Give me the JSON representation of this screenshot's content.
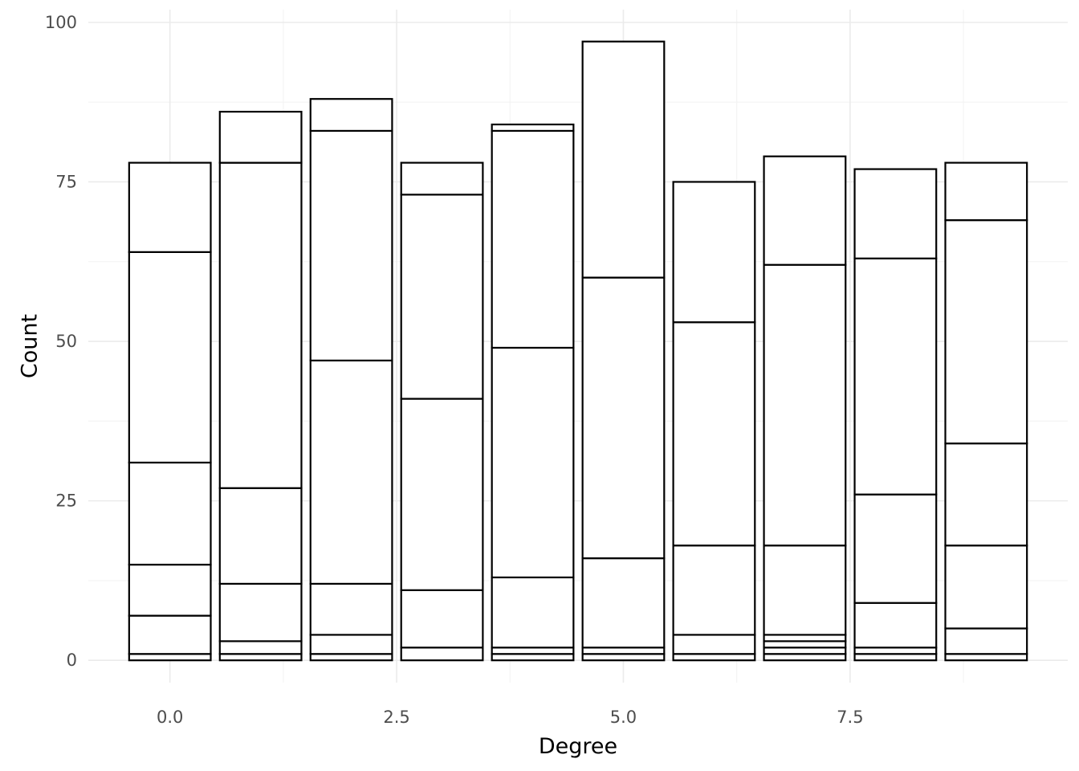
{
  "chart_data": {
    "type": "bar",
    "stacked": true,
    "title": "",
    "xlabel": "Degree",
    "ylabel": "Count",
    "xlim": [
      -0.9,
      9.9
    ],
    "ylim": [
      -3.5,
      102
    ],
    "x_ticks": [
      {
        "value": 0,
        "label": "0.0"
      },
      {
        "value": 2.5,
        "label": "2.5"
      },
      {
        "value": 5,
        "label": "5.0"
      },
      {
        "value": 7.5,
        "label": "7.5"
      }
    ],
    "y_ticks": [
      {
        "value": 0,
        "label": "0"
      },
      {
        "value": 25,
        "label": "25"
      },
      {
        "value": 50,
        "label": "50"
      },
      {
        "value": 75,
        "label": "75"
      },
      {
        "value": 100,
        "label": "100"
      }
    ],
    "grid": true,
    "bar_fill": "#ffffff",
    "bar_outline": "#000000",
    "bars": [
      {
        "x": 0,
        "boundaries": [
          0,
          1,
          7,
          15,
          31,
          64,
          78
        ]
      },
      {
        "x": 1,
        "boundaries": [
          0,
          1,
          3,
          12,
          27,
          78,
          86
        ]
      },
      {
        "x": 2,
        "boundaries": [
          0,
          1,
          4,
          12,
          47,
          83,
          88
        ]
      },
      {
        "x": 3,
        "boundaries": [
          0,
          2,
          11,
          41,
          73,
          78
        ]
      },
      {
        "x": 4,
        "boundaries": [
          0,
          1,
          2,
          13,
          49,
          83,
          84
        ]
      },
      {
        "x": 5,
        "boundaries": [
          0,
          1,
          2,
          16,
          60,
          97
        ]
      },
      {
        "x": 6,
        "boundaries": [
          0,
          1,
          4,
          18,
          53,
          75
        ]
      },
      {
        "x": 7,
        "boundaries": [
          0,
          1,
          2,
          3,
          4,
          18,
          62,
          79
        ]
      },
      {
        "x": 8,
        "boundaries": [
          0,
          1,
          2,
          9,
          26,
          63,
          77
        ]
      },
      {
        "x": 9,
        "boundaries": [
          0,
          1,
          5,
          18,
          34,
          69,
          78
        ]
      }
    ]
  }
}
